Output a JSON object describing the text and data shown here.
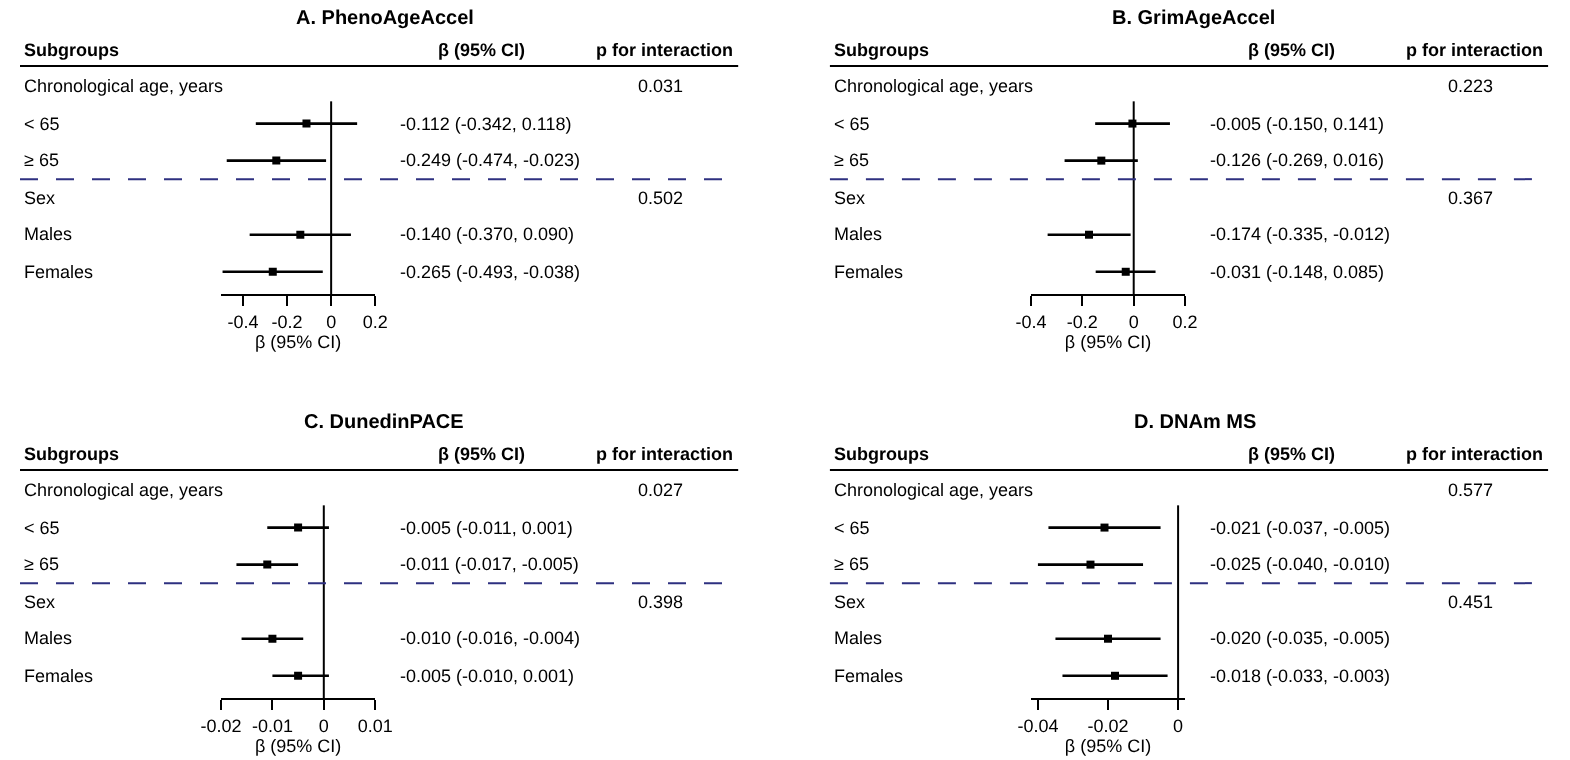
{
  "chart_data": [
    {
      "type": "scatter",
      "orientation": "horizontal",
      "title": "A. PhenoAgeAccel",
      "xlabel": "β (95% CI)",
      "categories": [
        "Chronological age, years",
        "< 65",
        "≥ 65",
        "Sex",
        "Males",
        "Females"
      ],
      "values": [
        null,
        -0.112,
        -0.249,
        null,
        -0.14,
        -0.265
      ],
      "errors": [
        null,
        [
          -0.342,
          0.118
        ],
        [
          -0.474,
          -0.023
        ],
        null,
        [
          -0.37,
          0.09
        ],
        [
          -0.493,
          -0.038
        ]
      ],
      "value_labels": [
        null,
        "-0.112 (-0.342, 0.118)",
        "-0.249 (-0.474, -0.023)",
        null,
        "-0.140 (-0.370, 0.090)",
        "-0.265 (-0.493, -0.038)"
      ],
      "color": "#000000",
      "marker": "square",
      "xlim": [
        -0.5,
        0.2
      ],
      "xticks": [
        -0.4,
        -0.2,
        0,
        0.2
      ],
      "ref_lines": [
        {
          "axis": "x",
          "value": 0,
          "color": "#000000"
        },
        {
          "axis": "y",
          "value": "Sex",
          "line_style": "dashed",
          "color": "#2e3080"
        }
      ],
      "annotations": [
        "Subgroups",
        "β (95% CI)",
        "p for interaction",
        "0.031",
        "0.502"
      ]
    },
    {
      "type": "scatter",
      "orientation": "horizontal",
      "title": "B. GrimAgeAccel",
      "xlabel": "β (95% CI)",
      "categories": [
        "Chronological age, years",
        "< 65",
        "≥ 65",
        "Sex",
        "Males",
        "Females"
      ],
      "values": [
        null,
        -0.005,
        -0.126,
        null,
        -0.174,
        -0.031
      ],
      "errors": [
        null,
        [
          -0.15,
          0.141
        ],
        [
          -0.269,
          0.016
        ],
        null,
        [
          -0.335,
          -0.012
        ],
        [
          -0.148,
          0.085
        ]
      ],
      "value_labels": [
        null,
        "-0.005 (-0.150, 0.141)",
        "-0.126 (-0.269, 0.016)",
        null,
        "-0.174 (-0.335, -0.012)",
        "-0.031 (-0.148, 0.085)"
      ],
      "color": "#000000",
      "marker": "square",
      "xlim": [
        -0.4,
        0.2
      ],
      "xticks": [
        -0.4,
        -0.2,
        0,
        0.2
      ],
      "ref_lines": [
        {
          "axis": "x",
          "value": 0,
          "color": "#000000"
        },
        {
          "axis": "y",
          "value": "Sex",
          "line_style": "dashed",
          "color": "#2e3080"
        }
      ],
      "annotations": [
        "Subgroups",
        "β (95% CI)",
        "p for interaction",
        "0.223",
        "0.367"
      ]
    },
    {
      "type": "scatter",
      "orientation": "horizontal",
      "title": "C. DunedinPACE",
      "xlabel": "β (95% CI)",
      "categories": [
        "Chronological age, years",
        "< 65",
        "≥ 65",
        "Sex",
        "Males",
        "Females"
      ],
      "values": [
        null,
        -0.005,
        -0.011,
        null,
        -0.01,
        -0.005
      ],
      "errors": [
        null,
        [
          -0.011,
          0.001
        ],
        [
          -0.017,
          -0.005
        ],
        null,
        [
          -0.016,
          -0.004
        ],
        [
          -0.01,
          0.001
        ]
      ],
      "value_labels": [
        null,
        "-0.005 (-0.011, 0.001)",
        "-0.011 (-0.017, -0.005)",
        null,
        "-0.010 (-0.016, -0.004)",
        "-0.005 (-0.010, 0.001)"
      ],
      "color": "#000000",
      "marker": "square",
      "xlim": [
        -0.02,
        0.01
      ],
      "xticks": [
        -0.02,
        -0.01,
        0,
        0.01
      ],
      "ref_lines": [
        {
          "axis": "x",
          "value": 0,
          "color": "#000000"
        },
        {
          "axis": "y",
          "value": "Sex",
          "line_style": "dashed",
          "color": "#2e3080"
        }
      ],
      "annotations": [
        "Subgroups",
        "β (95% CI)",
        "p for interaction",
        "0.027",
        "0.398"
      ]
    },
    {
      "type": "scatter",
      "orientation": "horizontal",
      "title": "D. DNAm MS",
      "xlabel": "β (95% CI)",
      "categories": [
        "Chronological age, years",
        "< 65",
        "≥ 65",
        "Sex",
        "Males",
        "Females"
      ],
      "values": [
        null,
        -0.021,
        -0.025,
        null,
        -0.02,
        -0.018
      ],
      "errors": [
        null,
        [
          -0.037,
          -0.005
        ],
        [
          -0.04,
          -0.01
        ],
        null,
        [
          -0.035,
          -0.005
        ],
        [
          -0.033,
          -0.003
        ]
      ],
      "value_labels": [
        null,
        "-0.021 (-0.037, -0.005)",
        "-0.025 (-0.040, -0.010)",
        null,
        "-0.020 (-0.035, -0.005)",
        "-0.018 (-0.033, -0.003)"
      ],
      "color": "#000000",
      "marker": "square",
      "xlim": [
        -0.042,
        0.002
      ],
      "xticks": [
        -0.04,
        -0.02,
        0
      ],
      "ref_lines": [
        {
          "axis": "x",
          "value": 0,
          "color": "#000000"
        },
        {
          "axis": "y",
          "value": "Sex",
          "line_style": "dashed",
          "color": "#2e3080"
        }
      ],
      "annotations": [
        "Subgroups",
        "β (95% CI)",
        "p for interaction",
        "0.577",
        "0.451"
      ]
    }
  ]
}
